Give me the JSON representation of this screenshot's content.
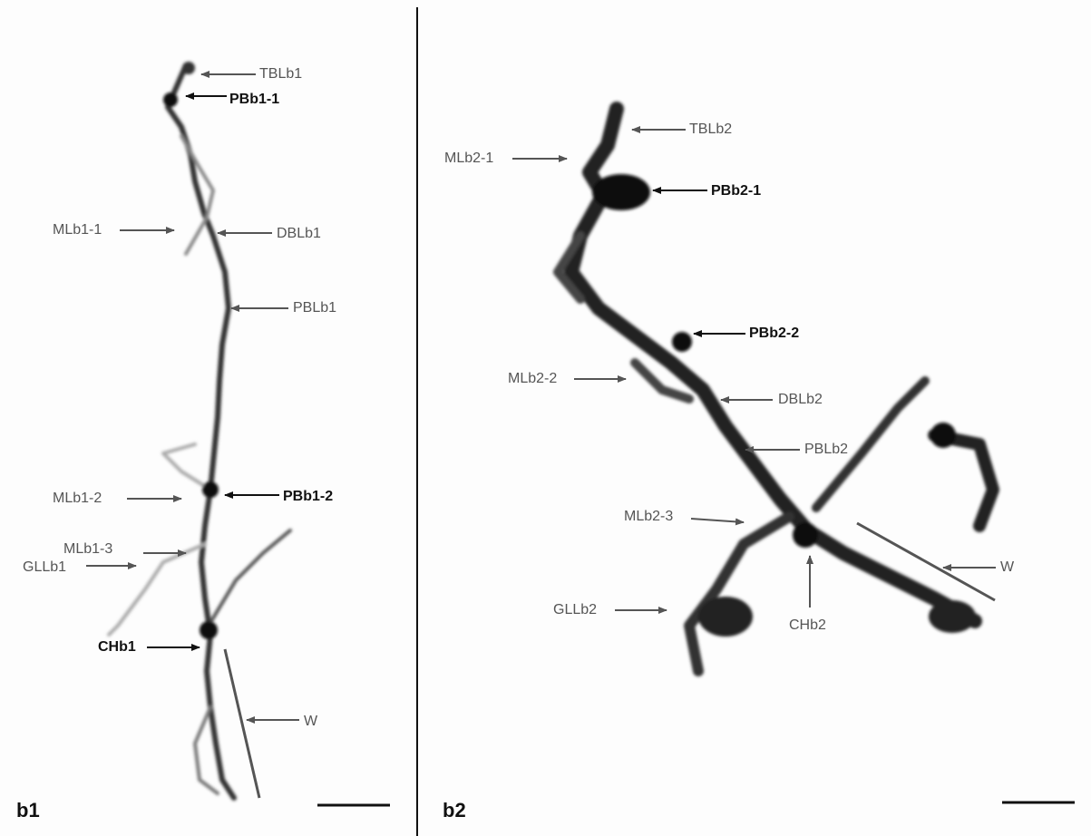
{
  "panels": [
    {
      "label": "b1",
      "annotations": [
        "TBLb1",
        "PBb1-1",
        "MLb1-1",
        "DBLb1",
        "PBLb1",
        "MLb1-2",
        "PBb1-2",
        "MLb1-3",
        "GLLb1",
        "CHb1",
        "W"
      ]
    },
    {
      "label": "b2",
      "annotations": [
        "TBLb2",
        "MLb2-1",
        "PBb2-1",
        "PBb2-2",
        "MLb2-2",
        "DBLb2",
        "PBLb2",
        "MLb2-3",
        "W",
        "GLLb2",
        "CHb2"
      ]
    }
  ]
}
